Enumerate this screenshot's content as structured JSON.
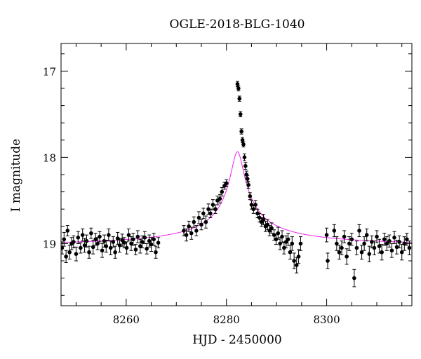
{
  "chart_data": {
    "type": "scatter",
    "title": "OGLE-2018-BLG-1040",
    "xlabel": "HJD - 2450000",
    "ylabel": "I magnitude",
    "xlim": [
      8247,
      8317
    ],
    "ylim": [
      19.72,
      16.68
    ],
    "y_inverted": true,
    "x_ticks": [
      8260,
      8280,
      8300
    ],
    "y_ticks": [
      17,
      18,
      19
    ],
    "grid": false,
    "series": [
      {
        "type": "scatter",
        "color": "#000000",
        "marker": "filled-circle-with-errorbar",
        "x": [
          8247.2,
          8247.6,
          8248.0,
          8248.3,
          8248.7,
          8249.1,
          8249.5,
          8250.0,
          8250.4,
          8250.9,
          8251.3,
          8251.7,
          8252.1,
          8252.6,
          8253.0,
          8253.4,
          8253.9,
          8254.3,
          8254.7,
          8255.2,
          8255.6,
          8256.0,
          8256.5,
          8256.9,
          8257.4,
          8257.8,
          8258.3,
          8258.7,
          8259.2,
          8259.6,
          8260.1,
          8260.5,
          8261.0,
          8261.4,
          8261.9,
          8262.3,
          8262.8,
          8263.2,
          8263.7,
          8264.1,
          8264.6,
          8265.0,
          8265.5,
          8265.9,
          8266.4,
          8271.5,
          8272.0,
          8272.5,
          8273.0,
          8273.5,
          8274.0,
          8274.5,
          8275.0,
          8275.4,
          8275.9,
          8276.4,
          8276.8,
          8277.3,
          8277.8,
          8278.2,
          8278.7,
          8279.1,
          8279.6,
          8280.0,
          8282.2,
          8282.4,
          8282.6,
          8282.8,
          8283.0,
          8283.2,
          8283.4,
          8283.6,
          8283.8,
          8284.0,
          8284.2,
          8284.4,
          8284.7,
          8285.0,
          8285.4,
          8285.8,
          8286.2,
          8286.6,
          8287.0,
          8287.4,
          8287.8,
          8288.2,
          8288.6,
          8289.0,
          8289.5,
          8289.9,
          8290.3,
          8290.7,
          8291.1,
          8291.5,
          8291.9,
          8292.3,
          8292.7,
          8293.1,
          8293.5,
          8294.0,
          8294.4,
          8294.8,
          8300.0,
          8300.2,
          8301.5,
          8302.0,
          8302.5,
          8303.0,
          8303.5,
          8304.0,
          8304.5,
          8305.0,
          8305.5,
          8306.0,
          8306.5,
          8307.0,
          8307.5,
          8308.0,
          8308.5,
          8309.0,
          8309.5,
          8310.0,
          8310.5,
          8311.0,
          8311.5,
          8312.0,
          8312.5,
          8313.0,
          8313.5,
          8314.0,
          8314.5,
          8315.0,
          8315.5,
          8316.0,
          8316.5
        ],
        "y": [
          19.05,
          18.95,
          19.15,
          18.85,
          19.1,
          19.0,
          18.98,
          19.12,
          18.93,
          19.05,
          18.9,
          19.02,
          18.97,
          19.1,
          18.88,
          19.04,
          18.95,
          19.0,
          18.92,
          19.08,
          18.97,
          19.03,
          18.9,
          19.05,
          18.98,
          19.1,
          18.94,
          19.02,
          18.96,
          18.99,
          19.05,
          18.9,
          19.0,
          18.95,
          19.07,
          18.92,
          19.03,
          18.98,
          18.93,
          19.06,
          18.97,
          19.01,
          18.95,
          19.1,
          18.99,
          18.85,
          18.9,
          18.8,
          18.88,
          18.75,
          18.85,
          18.7,
          18.78,
          18.65,
          18.75,
          18.6,
          18.65,
          18.55,
          18.6,
          18.5,
          18.48,
          18.4,
          18.33,
          18.3,
          17.15,
          17.2,
          17.32,
          17.5,
          17.7,
          17.8,
          17.85,
          18.0,
          18.1,
          18.2,
          18.25,
          18.32,
          18.45,
          18.55,
          18.6,
          18.55,
          18.65,
          18.7,
          18.75,
          18.72,
          18.8,
          18.78,
          18.85,
          18.82,
          18.9,
          18.95,
          18.88,
          19.0,
          18.92,
          19.05,
          18.98,
          18.95,
          19.1,
          19.0,
          19.2,
          19.25,
          19.15,
          19.0,
          18.9,
          19.2,
          18.85,
          19.0,
          19.1,
          19.05,
          18.92,
          19.15,
          19.0,
          18.95,
          19.4,
          19.05,
          18.85,
          19.1,
          19.0,
          18.9,
          19.12,
          18.98,
          19.05,
          18.92,
          19.03,
          19.1,
          18.95,
          19.0,
          18.97,
          19.08,
          18.93,
          19.04,
          18.98,
          19.1,
          19.0,
          18.95,
          19.05
        ],
        "err": [
          0.07,
          0.08,
          0.07,
          0.06,
          0.08,
          0.07,
          0.07,
          0.08,
          0.07,
          0.06,
          0.07,
          0.08,
          0.07,
          0.07,
          0.06,
          0.08,
          0.07,
          0.07,
          0.06,
          0.08,
          0.07,
          0.07,
          0.07,
          0.08,
          0.06,
          0.07,
          0.07,
          0.08,
          0.07,
          0.06,
          0.07,
          0.07,
          0.08,
          0.07,
          0.06,
          0.07,
          0.08,
          0.07,
          0.07,
          0.06,
          0.07,
          0.08,
          0.07,
          0.07,
          0.06,
          0.06,
          0.07,
          0.06,
          0.07,
          0.06,
          0.06,
          0.07,
          0.06,
          0.06,
          0.07,
          0.06,
          0.05,
          0.06,
          0.05,
          0.05,
          0.05,
          0.05,
          0.04,
          0.04,
          0.03,
          0.03,
          0.03,
          0.03,
          0.03,
          0.03,
          0.03,
          0.04,
          0.04,
          0.04,
          0.04,
          0.04,
          0.04,
          0.05,
          0.05,
          0.05,
          0.05,
          0.05,
          0.05,
          0.06,
          0.06,
          0.06,
          0.06,
          0.06,
          0.06,
          0.06,
          0.07,
          0.07,
          0.07,
          0.07,
          0.07,
          0.07,
          0.08,
          0.08,
          0.09,
          0.09,
          0.08,
          0.08,
          0.08,
          0.09,
          0.07,
          0.08,
          0.08,
          0.08,
          0.07,
          0.09,
          0.08,
          0.07,
          0.1,
          0.08,
          0.07,
          0.08,
          0.08,
          0.07,
          0.09,
          0.07,
          0.08,
          0.07,
          0.08,
          0.09,
          0.07,
          0.08,
          0.07,
          0.08,
          0.07,
          0.08,
          0.07,
          0.09,
          0.08,
          0.07,
          0.08
        ]
      },
      {
        "type": "line",
        "color": "#ee22ee",
        "model": "microlensing",
        "t0": 8282.2,
        "tE": 60,
        "u0": 0.02,
        "m_base": 19.02,
        "fs": 0.035
      }
    ]
  }
}
